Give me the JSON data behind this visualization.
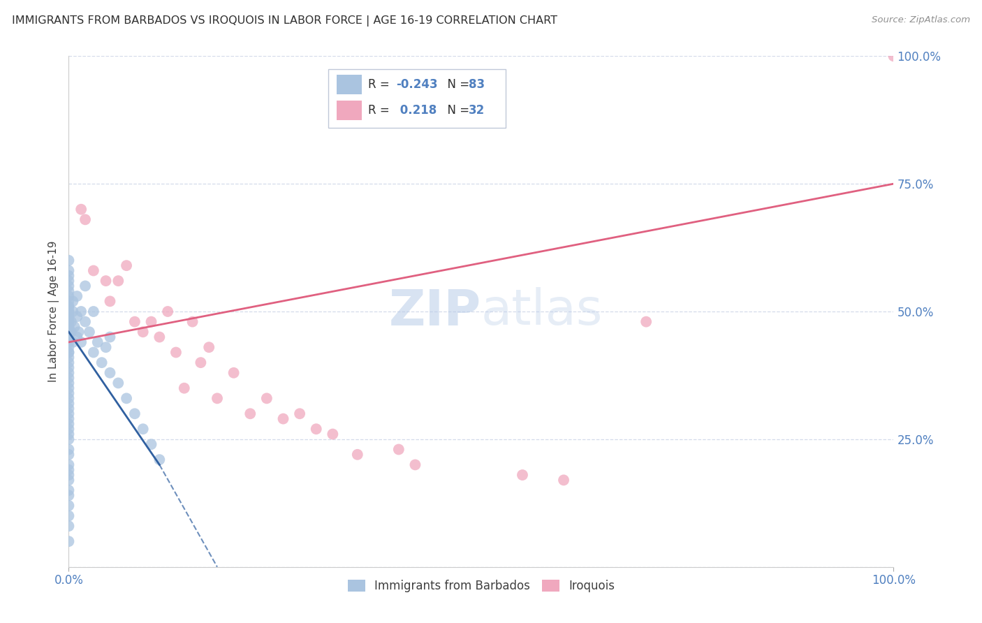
{
  "title": "IMMIGRANTS FROM BARBADOS VS IROQUOIS IN LABOR FORCE | AGE 16-19 CORRELATION CHART",
  "source": "Source: ZipAtlas.com",
  "ylabel": "In Labor Force | Age 16-19",
  "watermark_zip": "ZIP",
  "watermark_atlas": "atlas",
  "legend_blue_r": "-0.243",
  "legend_blue_n": "83",
  "legend_pink_r": "0.218",
  "legend_pink_n": "32",
  "blue_color": "#aac4e0",
  "pink_color": "#f0a8be",
  "blue_line_color": "#3060a0",
  "pink_line_color": "#e06080",
  "axis_label_color": "#5080c0",
  "title_color": "#303030",
  "background_color": "#ffffff",
  "grid_color": "#d0d8e8",
  "xlim": [
    0.0,
    100.0
  ],
  "ylim": [
    0.0,
    100.0
  ],
  "blue_points_x": [
    0.0,
    0.0,
    0.0,
    0.0,
    0.0,
    0.0,
    0.0,
    0.0,
    0.0,
    0.0,
    0.0,
    0.0,
    0.0,
    0.0,
    0.0,
    0.0,
    0.0,
    0.0,
    0.0,
    0.0,
    0.0,
    0.0,
    0.0,
    0.0,
    0.0,
    0.0,
    0.0,
    0.0,
    0.0,
    0.0,
    0.0,
    0.0,
    0.0,
    0.0,
    0.0,
    0.0,
    0.0,
    0.0,
    0.0,
    0.0,
    0.0,
    0.0,
    0.0,
    0.0,
    0.0,
    0.0,
    0.0,
    0.0,
    0.0,
    0.0,
    0.0,
    0.0,
    0.0,
    0.0,
    0.0,
    0.3,
    0.3,
    0.5,
    0.5,
    0.5,
    0.7,
    1.0,
    1.0,
    1.0,
    1.2,
    1.5,
    1.5,
    2.0,
    2.0,
    2.5,
    3.0,
    3.0,
    3.5,
    4.0,
    4.5,
    5.0,
    5.0,
    6.0,
    7.0,
    8.0,
    9.0,
    10.0,
    11.0
  ],
  "blue_points_y": [
    5.0,
    8.0,
    10.0,
    12.0,
    14.0,
    15.0,
    17.0,
    18.0,
    19.0,
    20.0,
    22.0,
    23.0,
    25.0,
    26.0,
    27.0,
    28.0,
    29.0,
    30.0,
    31.0,
    32.0,
    33.0,
    34.0,
    35.0,
    36.0,
    37.0,
    38.0,
    39.0,
    40.0,
    41.0,
    42.0,
    42.0,
    43.0,
    44.0,
    45.0,
    45.0,
    46.0,
    46.0,
    47.0,
    47.0,
    48.0,
    48.0,
    49.0,
    49.0,
    50.0,
    50.0,
    51.0,
    51.0,
    52.0,
    53.0,
    54.0,
    55.0,
    56.0,
    57.0,
    58.0,
    60.0,
    46.0,
    48.0,
    44.0,
    50.0,
    52.0,
    47.0,
    45.0,
    49.0,
    53.0,
    46.0,
    50.0,
    44.0,
    48.0,
    55.0,
    46.0,
    42.0,
    50.0,
    44.0,
    40.0,
    43.0,
    38.0,
    45.0,
    36.0,
    33.0,
    30.0,
    27.0,
    24.0,
    21.0
  ],
  "pink_points_x": [
    1.5,
    2.0,
    3.0,
    4.5,
    5.0,
    6.0,
    7.0,
    8.0,
    9.0,
    10.0,
    11.0,
    12.0,
    13.0,
    14.0,
    15.0,
    16.0,
    17.0,
    18.0,
    20.0,
    22.0,
    24.0,
    26.0,
    28.0,
    30.0,
    32.0,
    35.0,
    40.0,
    42.0,
    55.0,
    60.0,
    70.0,
    100.0
  ],
  "pink_points_y": [
    70.0,
    68.0,
    58.0,
    56.0,
    52.0,
    56.0,
    59.0,
    48.0,
    46.0,
    48.0,
    45.0,
    50.0,
    42.0,
    35.0,
    48.0,
    40.0,
    43.0,
    33.0,
    38.0,
    30.0,
    33.0,
    29.0,
    30.0,
    27.0,
    26.0,
    22.0,
    23.0,
    20.0,
    18.0,
    17.0,
    48.0,
    100.0
  ],
  "blue_line_x0": 0.0,
  "blue_line_y0": 46.0,
  "blue_line_x1": 11.0,
  "blue_line_y1": 20.0,
  "blue_dash_x0": 11.0,
  "blue_dash_y0": 20.0,
  "blue_dash_x1": 18.0,
  "blue_dash_y1": 0.0,
  "pink_line_x0": 0.0,
  "pink_line_y0": 44.0,
  "pink_line_x1": 100.0,
  "pink_line_y1": 75.0
}
